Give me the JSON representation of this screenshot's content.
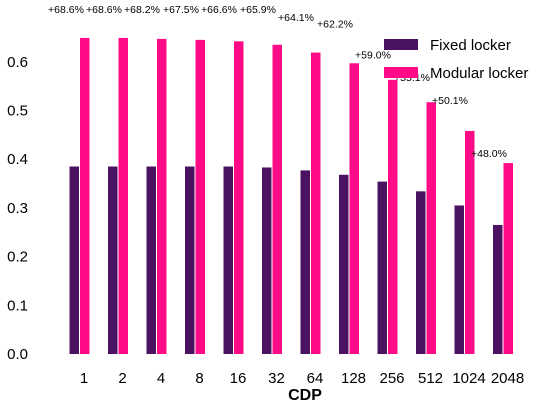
{
  "chart_data": {
    "type": "bar",
    "title": "",
    "xlabel": "CDP",
    "ylabel": "",
    "ylim": [
      0,
      0.68
    ],
    "yticks": [
      "0.0",
      "0.1",
      "0.2",
      "0.3",
      "0.4",
      "0.5",
      "0.6"
    ],
    "categories": [
      "1",
      "2",
      "4",
      "8",
      "16",
      "32",
      "64",
      "128",
      "256",
      "512",
      "1024",
      "2048"
    ],
    "series": [
      {
        "name": "Fixed locker",
        "color": "#4a1260",
        "values": [
          0.385,
          0.385,
          0.385,
          0.385,
          0.385,
          0.383,
          0.377,
          0.368,
          0.354,
          0.334,
          0.305,
          0.265
        ]
      },
      {
        "name": "Modular locker",
        "color": "#ff0a87",
        "values": [
          0.649,
          0.649,
          0.647,
          0.645,
          0.642,
          0.635,
          0.619,
          0.597,
          0.563,
          0.517,
          0.458,
          0.392
        ]
      }
    ],
    "annotations": [
      "+68.6%",
      "+68.6%",
      "+68.2%",
      "+67.5%",
      "+66.6%",
      "+65.9%",
      "+64.1%",
      "+62.2%",
      "+59.0%",
      "+55.1%",
      "+50.1%",
      "+48.0%"
    ],
    "grid": false,
    "legend_position": "top-right"
  }
}
